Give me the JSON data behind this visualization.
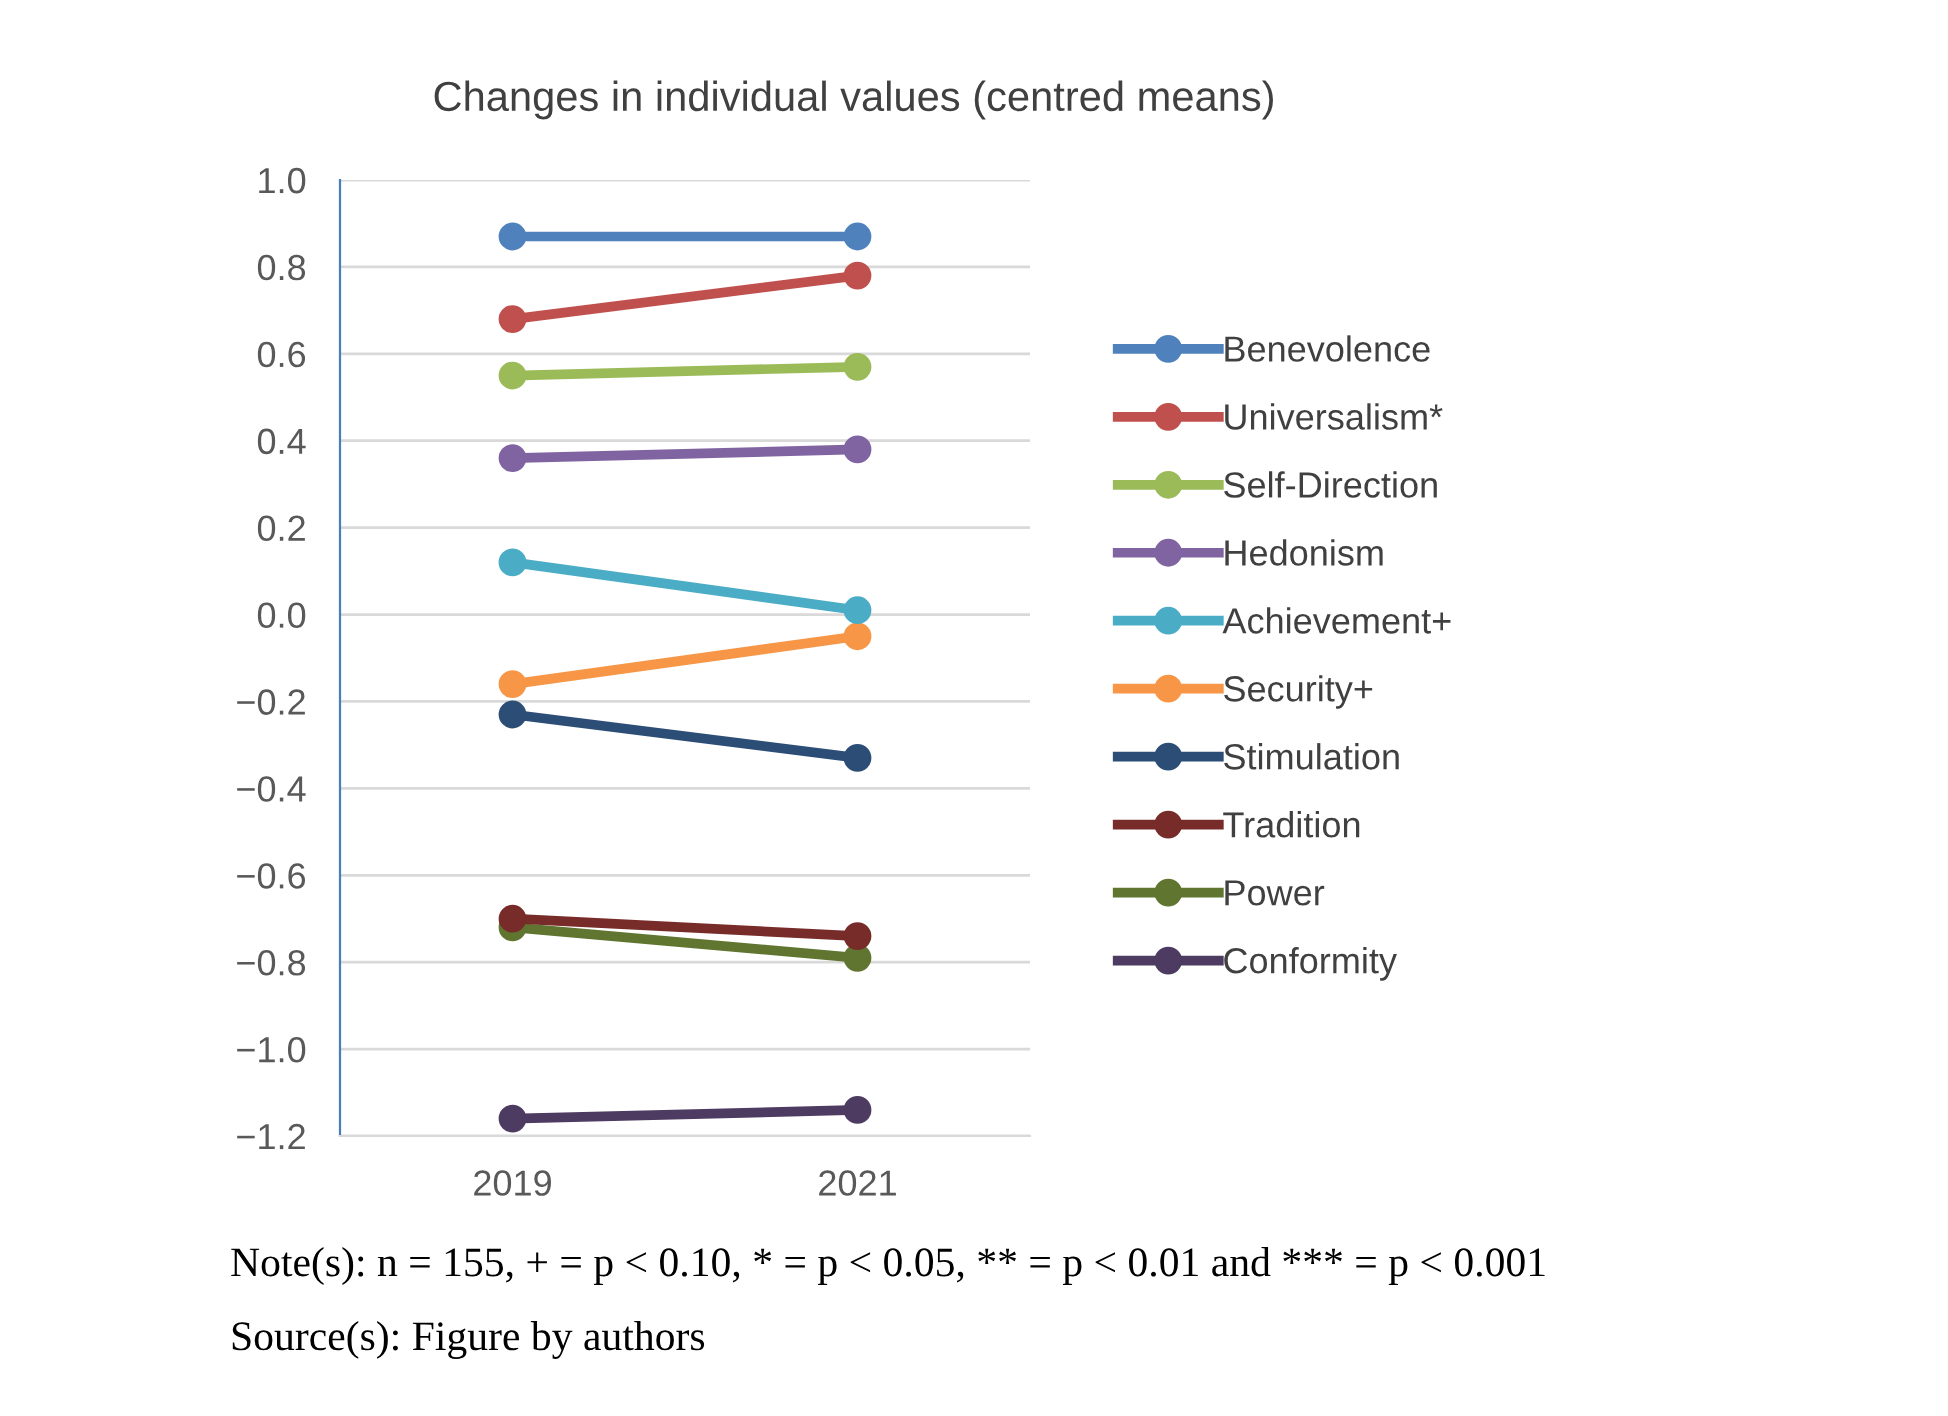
{
  "chart_data": {
    "type": "line",
    "title": "Changes in individual values (centred means)",
    "categories": [
      "2019",
      "2021"
    ],
    "series": [
      {
        "name": "Benevolence",
        "color": "#4f81bd",
        "values": [
          0.87,
          0.87
        ]
      },
      {
        "name": "Universalism*",
        "color": "#c0504d",
        "values": [
          0.68,
          0.78
        ]
      },
      {
        "name": "Self-Direction",
        "color": "#9bbb59",
        "values": [
          0.55,
          0.57
        ]
      },
      {
        "name": "Hedonism",
        "color": "#8064a2",
        "values": [
          0.36,
          0.38
        ]
      },
      {
        "name": "Achievement+",
        "color": "#4bacc6",
        "values": [
          0.12,
          0.01
        ]
      },
      {
        "name": "Security+",
        "color": "#f79646",
        "values": [
          -0.16,
          -0.05
        ]
      },
      {
        "name": "Stimulation",
        "color": "#2c4d75",
        "values": [
          -0.23,
          -0.33
        ]
      },
      {
        "name": "Tradition",
        "color": "#772c2a",
        "values": [
          -0.7,
          -0.74
        ]
      },
      {
        "name": "Power",
        "color": "#5f7530",
        "values": [
          -0.72,
          -0.79
        ]
      },
      {
        "name": "Conformity",
        "color": "#4d3b62",
        "values": [
          -1.16,
          -1.14
        ]
      }
    ],
    "ylim": [
      -1.2,
      1.0
    ],
    "yticks": [
      {
        "value": -1.2,
        "label": "−1.2"
      },
      {
        "value": -1.0,
        "label": "−1.0"
      },
      {
        "value": -0.8,
        "label": "−0.8"
      },
      {
        "value": -0.6,
        "label": "−0.6"
      },
      {
        "value": -0.4,
        "label": "−0.4"
      },
      {
        "value": -0.2,
        "label": "−0.2"
      },
      {
        "value": 0.0,
        "label": "0.0"
      },
      {
        "value": 0.2,
        "label": "0.2"
      },
      {
        "value": 0.4,
        "label": "0.4"
      },
      {
        "value": 0.6,
        "label": "0.6"
      },
      {
        "value": 0.8,
        "label": "0.8"
      },
      {
        "value": 1.0,
        "label": "1.0"
      }
    ],
    "grid": "y",
    "legend": "right",
    "marker": "circle",
    "line_style": "solid",
    "annotations": [
      "Note(s): n = 155, + = p < 0.10, * = p < 0.05, ** = p < 0.01 and *** = p < 0.001",
      "Source(s): Figure by authors"
    ]
  }
}
